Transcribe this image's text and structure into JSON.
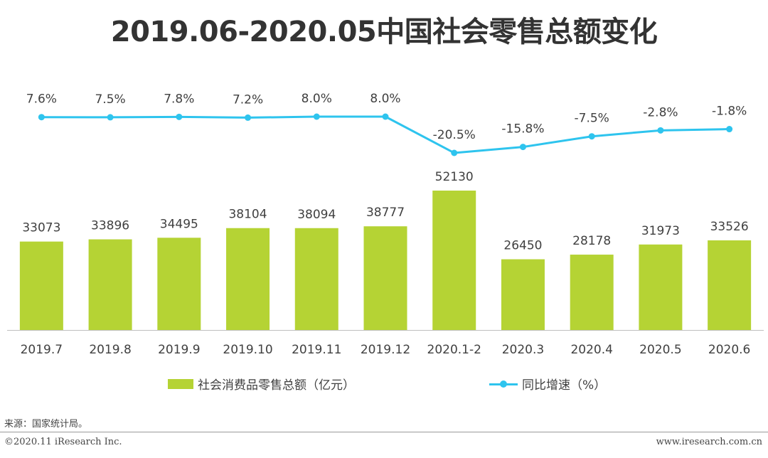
{
  "chart_data": {
    "type": "bar",
    "title": "2019.06-2020.05中国社会零售总额变化",
    "categories": [
      "2019.7",
      "2019.8",
      "2019.9",
      "2019.10",
      "2019.11",
      "2019.12",
      "2020.1-2",
      "2020.3",
      "2020.4",
      "2020.5",
      "2020.6"
    ],
    "series": [
      {
        "name": "社会消费品零售总额（亿元）",
        "type": "bar",
        "values": [
          33073,
          33896,
          34495,
          38104,
          38094,
          38777,
          52130,
          26450,
          28178,
          31973,
          33526
        ],
        "labels": [
          "33073",
          "33896",
          "34495",
          "38104",
          "38094",
          "38777",
          "52130",
          "26450",
          "28178",
          "31973",
          "33526"
        ],
        "color": "#b5d334"
      },
      {
        "name": "同比增速（%）",
        "type": "line",
        "values": [
          7.6,
          7.5,
          7.8,
          7.2,
          8.0,
          8.0,
          -20.5,
          -15.8,
          -7.5,
          -2.8,
          -1.8
        ],
        "labels": [
          "7.6%",
          "7.5%",
          "7.8%",
          "7.2%",
          "8.0%",
          "8.0%",
          "-20.5%",
          "-15.8%",
          "-7.5%",
          "-2.8%",
          "-1.8%"
        ],
        "color": "#2ec4ee"
      }
    ],
    "bar_ylim": [
      0,
      52130
    ],
    "line_ylim": [
      -20.5,
      8.0
    ],
    "grid": false,
    "legend_position": "bottom"
  },
  "legend": {
    "bar_label": "社会消费品零售总额（亿元）",
    "line_label": "同比增速（%）"
  },
  "footer": {
    "source": "来源：国家统计局。",
    "copyright": "©2020.11 iResearch Inc.",
    "website": "www.iresearch.com.cn"
  }
}
